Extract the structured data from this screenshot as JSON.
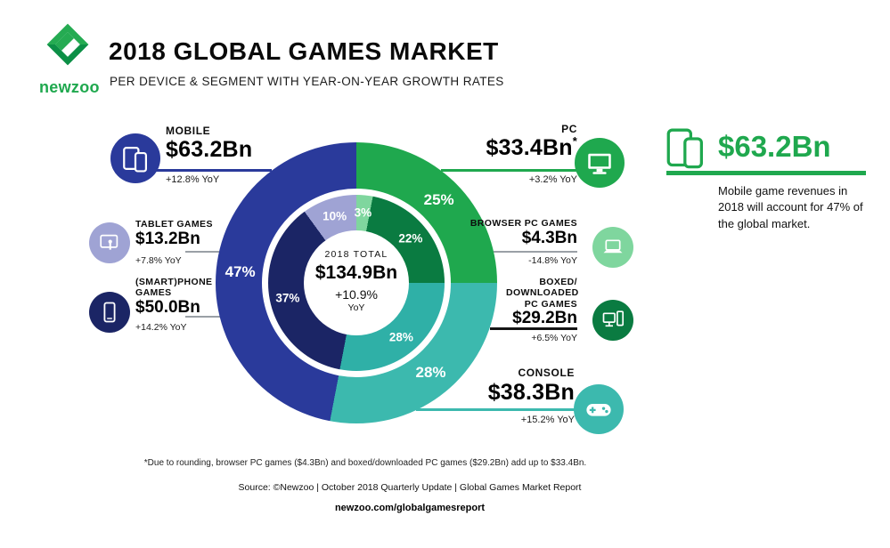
{
  "header": {
    "logo_text": "newzoo",
    "title": "2018 GLOBAL GAMES MARKET",
    "subtitle": "PER DEVICE & SEGMENT WITH YEAR-ON-YEAR GROWTH RATES"
  },
  "chart_data": {
    "type": "pie",
    "variant": "double-ring-donut",
    "title": "2018 Global Games Market per device & segment",
    "unit": "USD billions",
    "clockwise": true,
    "start_angle_deg": 0,
    "total": {
      "label": "2018 TOTAL",
      "value": "$134.9Bn",
      "value_bn": 134.9,
      "growth": "+10.9%",
      "growth_suffix": "YoY"
    },
    "outer_ring": [
      {
        "id": "pc",
        "name": "PC",
        "pct": 25,
        "value_bn": 33.4,
        "label": "25%",
        "color": "#1fa84e"
      },
      {
        "id": "console",
        "name": "Console",
        "pct": 28,
        "value_bn": 38.3,
        "label": "28%",
        "color": "#3cb9ae"
      },
      {
        "id": "mobile",
        "name": "Mobile",
        "pct": 47,
        "value_bn": 63.2,
        "label": "47%",
        "color": "#2a3a9b"
      }
    ],
    "inner_ring": [
      {
        "id": "browser-pc",
        "name": "Browser PC games",
        "pct": 3,
        "value_bn": 4.3,
        "label": "3%",
        "color": "#7fd69e"
      },
      {
        "id": "boxed-pc",
        "name": "Boxed/downloaded PC games",
        "pct": 22,
        "value_bn": 29.2,
        "label": "22%",
        "color": "#0a7b41"
      },
      {
        "id": "console",
        "name": "Console",
        "pct": 28,
        "value_bn": 38.3,
        "label": "28%",
        "color": "#2fb0a7"
      },
      {
        "id": "smartphone",
        "name": "(Smart)phone games",
        "pct": 37,
        "value_bn": 50.0,
        "label": "37%",
        "color": "#1b2565"
      },
      {
        "id": "tablet",
        "name": "Tablet games",
        "pct": 10,
        "value_bn": 13.2,
        "label": "10%",
        "color": "#9fa3d4"
      }
    ]
  },
  "callouts": {
    "mobile": {
      "label": "MOBILE",
      "value": "$63.2Bn",
      "growth": "+12.8% YoY",
      "icon": "phone-and-tablet-icon"
    },
    "tablet": {
      "label": "TABLET GAMES",
      "value": "$13.2Bn",
      "growth": "+7.8% YoY",
      "icon": "tablet-touch-icon"
    },
    "smartphone": {
      "label": "(SMART)PHONE GAMES",
      "value": "$50.0Bn",
      "growth": "+14.2% YoY",
      "icon": "smartphone-icon"
    },
    "pc": {
      "label": "PC",
      "value": "$33.4Bn",
      "asterisk": "*",
      "growth": "+3.2% YoY",
      "icon": "desktop-monitor-icon"
    },
    "browser": {
      "label": "BROWSER PC GAMES",
      "value": "$4.3Bn",
      "growth": "-14.8% YoY",
      "icon": "laptop-icon"
    },
    "boxed": {
      "label": "BOXED/ DOWNLOADED PC GAMES",
      "value": "$29.2Bn",
      "growth": "+6.5% YoY",
      "icon": "desktop-tower-icon"
    },
    "console": {
      "label": "CONSOLE",
      "value": "$38.3Bn",
      "growth": "+15.2% YoY",
      "icon": "gamepad-icon"
    }
  },
  "highlight": {
    "icon": "two-phones-icon",
    "value": "$63.2Bn",
    "text": "Mobile game revenues in 2018 will account for 47% of the global market."
  },
  "footer": {
    "footnote": "*Due to rounding, browser PC games ($4.3Bn) and boxed/downloaded PC games ($29.2Bn) add up to $33.4Bn.",
    "source": "Source: ©Newzoo | October 2018 Quarterly Update | Global Games Market Report",
    "url": "newzoo.com/globalgamesreport"
  },
  "colors": {
    "green": "#1fa84e",
    "green-dark": "#0a7b41",
    "green-light": "#7fd69e",
    "teal": "#3cb9ae",
    "blue": "#2a3a9b",
    "navy": "#1b2565",
    "lavender": "#9fa3d4",
    "gray-line": "#9aa0a6"
  }
}
